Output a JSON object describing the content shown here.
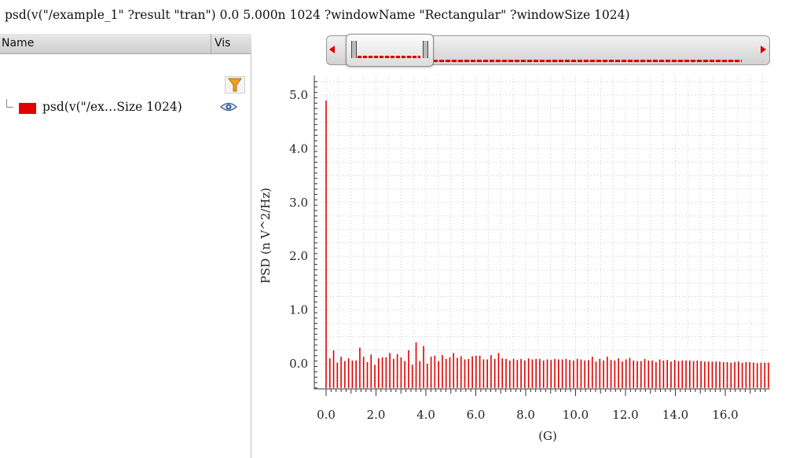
{
  "window": {
    "title": "psd(v(\"/example_1\" ?result \"tran\")  0.0 5.000n 1024 ?windowName \"Rectangular\" ?windowSize 1024)"
  },
  "trace_panel": {
    "header_name": "Name",
    "header_vis": "Vis",
    "filter_icon": "filter-funnel-icon",
    "trace_label": "psd(v(\"/ex…Size 1024)",
    "trace_color": "#e00000",
    "visibility_icon": "eye-icon"
  },
  "colors": {
    "trace": "#e00000",
    "grid": "#c8c8c8",
    "axis": "#333333"
  },
  "chart_data": {
    "type": "bar",
    "xlabel": "(G)",
    "ylabel": "PSD (n V^2/Hz)",
    "xlim": [
      0.0,
      17.7
    ],
    "ylim": [
      -0.45,
      5.3
    ],
    "xticks": [
      "0.0",
      "2.0",
      "4.0",
      "6.0",
      "8.0",
      "10.0",
      "12.0",
      "14.0",
      "16.0"
    ],
    "yticks": [
      "0.0",
      "1.0",
      "2.0",
      "3.0",
      "4.0",
      "5.0"
    ],
    "grid": true,
    "baseline": -0.45,
    "series": [
      {
        "values": [
          4.9,
          0.1,
          0.25,
          0.02,
          0.13,
          0.05,
          0.1,
          0.06,
          0.06,
          0.3,
          0.13,
          0.03,
          0.17,
          -0.02,
          0.1,
          0.12,
          0.12,
          0.2,
          0.09,
          0.18,
          0.12,
          0.05,
          0.25,
          -0.02,
          0.4,
          0.05,
          0.33,
          0.0,
          0.13,
          0.15,
          0.05,
          0.16,
          0.09,
          0.12,
          0.2,
          0.11,
          0.14,
          0.08,
          0.09,
          0.14,
          0.15,
          0.15,
          0.08,
          0.08,
          0.16,
          0.09,
          0.2,
          0.1,
          0.09,
          0.06,
          0.09,
          0.07,
          0.09,
          0.06,
          0.1,
          0.08,
          0.09,
          0.09,
          0.06,
          0.08,
          0.07,
          0.09,
          0.08,
          0.08,
          0.09,
          0.07,
          0.06,
          0.09,
          0.08,
          0.06,
          0.07,
          0.13,
          0.04,
          0.09,
          0.06,
          0.13,
          0.07,
          0.06,
          0.1,
          0.04,
          0.08,
          0.11,
          0.06,
          0.05,
          0.05,
          0.09,
          0.06,
          0.06,
          0.03,
          0.08,
          0.06,
          0.07,
          0.04,
          0.07,
          0.05,
          0.06,
          0.06,
          0.06,
          0.05,
          0.06,
          0.05,
          0.04,
          0.04,
          0.04,
          0.04,
          0.04,
          0.03,
          0.03,
          0.02,
          0.03,
          0.04,
          0.02,
          0.03,
          0.03,
          0.02,
          0.01,
          0.02,
          0.02,
          0.02
        ]
      }
    ]
  }
}
